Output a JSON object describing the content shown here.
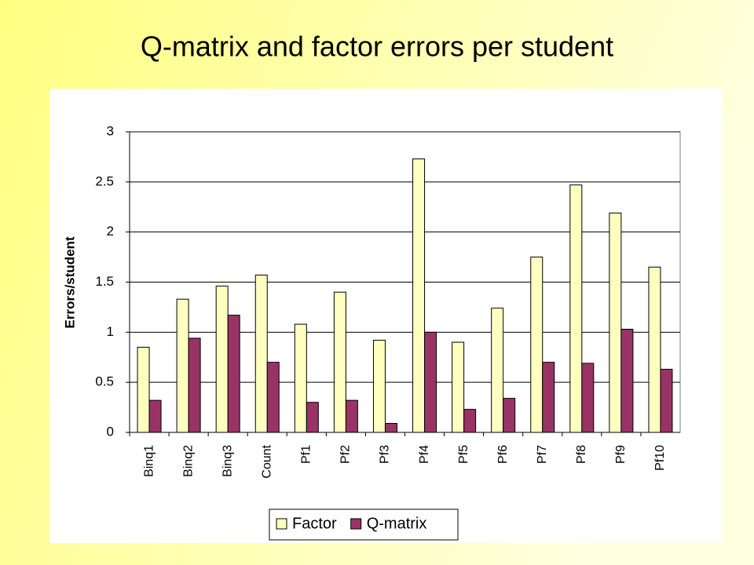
{
  "chart_data": {
    "type": "bar",
    "title": "Q-matrix and factor errors per student",
    "y_label": "Errors/student",
    "categories": [
      "Binq1",
      "Binq2",
      "Binq3",
      "Count",
      "Pf1",
      "Pf2",
      "Pf3",
      "Pf4",
      "Pf5",
      "Pf6",
      "Pf7",
      "Pf8",
      "Pf9",
      "Pf10"
    ],
    "series": [
      {
        "name": "Factor",
        "color": "#ffffc0",
        "values": [
          0.85,
          1.33,
          1.46,
          1.57,
          1.08,
          1.4,
          0.92,
          2.73,
          0.9,
          1.24,
          1.75,
          2.47,
          2.19,
          1.65
        ]
      },
      {
        "name": "Q-matrix",
        "color": "#993366",
        "values": [
          0.32,
          0.94,
          1.17,
          0.7,
          0.3,
          0.32,
          0.09,
          1.0,
          0.23,
          0.34,
          0.7,
          0.69,
          1.03,
          0.63
        ]
      }
    ],
    "ylim": [
      0,
      3
    ],
    "yticks": [
      0,
      0.5,
      1,
      1.5,
      2,
      2.5,
      3
    ],
    "grid": true,
    "legend": "bottom"
  }
}
